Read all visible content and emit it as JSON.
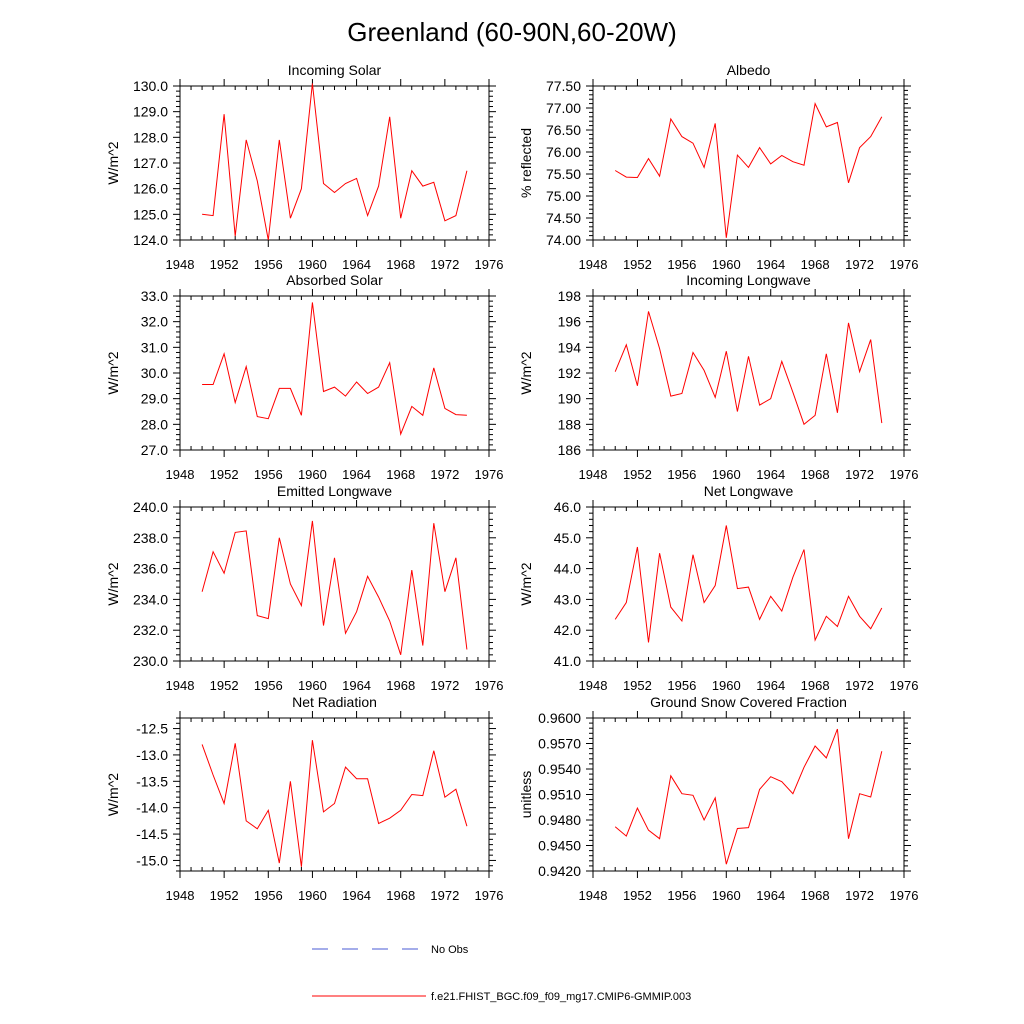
{
  "figure": {
    "title": "Greenland (60-90N,60-20W)",
    "legend": [
      {
        "label": "No Obs",
        "color": "#4a5bd6",
        "dash": true
      },
      {
        "label": "f.e21.FHIST_BGC.f09_f09_mg17.CMIP6-GMMIP.003",
        "color": "#ff0000",
        "dash": false
      }
    ]
  },
  "series_color": "#ff0000",
  "chart_data": [
    {
      "type": "line",
      "title": "Incoming Solar",
      "ylabel": "W/m^2",
      "xlim": [
        1948,
        1976
      ],
      "ylim": [
        124.0,
        130.0
      ],
      "xticks": [
        1948,
        1952,
        1956,
        1960,
        1964,
        1968,
        1972,
        1976
      ],
      "yticks": [
        "124.0",
        "125.0",
        "126.0",
        "127.0",
        "128.0",
        "129.0",
        "130.0"
      ],
      "x": [
        1950,
        1951,
        1952,
        1953,
        1954,
        1955,
        1956,
        1957,
        1958,
        1959,
        1960,
        1961,
        1962,
        1963,
        1964,
        1965,
        1966,
        1967,
        1968,
        1969,
        1970,
        1971,
        1972,
        1973,
        1974
      ],
      "y": [
        125.0,
        124.95,
        128.9,
        124.15,
        127.9,
        126.3,
        124.0,
        127.9,
        124.85,
        126.0,
        130.1,
        126.2,
        125.85,
        126.2,
        126.4,
        124.95,
        126.1,
        128.8,
        124.85,
        126.7,
        126.1,
        126.25,
        124.75,
        124.95,
        126.7
      ]
    },
    {
      "type": "line",
      "title": "Albedo",
      "ylabel": "% reflected",
      "xlim": [
        1948,
        1976
      ],
      "ylim": [
        74.0,
        77.5
      ],
      "xticks": [
        1948,
        1952,
        1956,
        1960,
        1964,
        1968,
        1972,
        1976
      ],
      "yticks": [
        "74.00",
        "74.50",
        "75.00",
        "75.50",
        "76.00",
        "76.50",
        "77.00",
        "77.50"
      ],
      "x": [
        1950,
        1951,
        1952,
        1953,
        1954,
        1955,
        1956,
        1957,
        1958,
        1959,
        1960,
        1961,
        1962,
        1963,
        1964,
        1965,
        1966,
        1967,
        1968,
        1969,
        1970,
        1971,
        1972,
        1973,
        1974
      ],
      "y": [
        75.58,
        75.43,
        75.42,
        75.85,
        75.45,
        76.75,
        76.35,
        76.2,
        75.65,
        76.65,
        74.05,
        75.93,
        75.65,
        76.1,
        75.73,
        75.92,
        75.78,
        75.7,
        77.1,
        76.57,
        76.67,
        75.3,
        76.1,
        76.35,
        76.8
      ]
    },
    {
      "type": "line",
      "title": "Absorbed Solar",
      "ylabel": "W/m^2",
      "xlim": [
        1948,
        1976
      ],
      "ylim": [
        27.0,
        33.0
      ],
      "xticks": [
        1948,
        1952,
        1956,
        1960,
        1964,
        1968,
        1972,
        1976
      ],
      "yticks": [
        "27.0",
        "28.0",
        "29.0",
        "30.0",
        "31.0",
        "32.0",
        "33.0"
      ],
      "x": [
        1950,
        1951,
        1952,
        1953,
        1954,
        1955,
        1956,
        1957,
        1958,
        1959,
        1960,
        1961,
        1962,
        1963,
        1964,
        1965,
        1966,
        1967,
        1968,
        1969,
        1970,
        1971,
        1972,
        1973,
        1974
      ],
      "y": [
        29.55,
        29.55,
        30.75,
        28.85,
        30.25,
        28.3,
        28.22,
        29.4,
        29.4,
        28.35,
        32.75,
        29.28,
        29.45,
        29.1,
        29.65,
        29.2,
        29.45,
        30.4,
        27.62,
        28.7,
        28.35,
        30.2,
        28.62,
        28.38,
        28.35
      ]
    },
    {
      "type": "line",
      "title": "Incoming Longwave",
      "ylabel": "W/m^2",
      "xlim": [
        1948,
        1976
      ],
      "ylim": [
        186,
        198
      ],
      "xticks": [
        1948,
        1952,
        1956,
        1960,
        1964,
        1968,
        1972,
        1976
      ],
      "yticks": [
        "186",
        "188",
        "190",
        "192",
        "194",
        "196",
        "198"
      ],
      "x": [
        1950,
        1951,
        1952,
        1953,
        1954,
        1955,
        1956,
        1957,
        1958,
        1959,
        1960,
        1961,
        1962,
        1963,
        1964,
        1965,
        1966,
        1967,
        1968,
        1969,
        1970,
        1971,
        1972,
        1973,
        1974
      ],
      "y": [
        192.1,
        194.2,
        191.0,
        196.8,
        193.9,
        190.2,
        190.4,
        193.6,
        192.2,
        190.1,
        193.7,
        189.0,
        193.3,
        189.5,
        190.0,
        192.9,
        190.5,
        188.0,
        188.7,
        193.5,
        188.9,
        195.9,
        192.1,
        194.6,
        188.1
      ]
    },
    {
      "type": "line",
      "title": "Emitted Longwave",
      "ylabel": "W/m^2",
      "xlim": [
        1948,
        1976
      ],
      "ylim": [
        230.0,
        240.0
      ],
      "xticks": [
        1948,
        1952,
        1956,
        1960,
        1964,
        1968,
        1972,
        1976
      ],
      "yticks": [
        "230.0",
        "232.0",
        "234.0",
        "236.0",
        "238.0",
        "240.0"
      ],
      "x": [
        1950,
        1951,
        1952,
        1953,
        1954,
        1955,
        1956,
        1957,
        1958,
        1959,
        1960,
        1961,
        1962,
        1963,
        1964,
        1965,
        1966,
        1967,
        1968,
        1969,
        1970,
        1971,
        1972,
        1973,
        1974
      ],
      "y": [
        234.5,
        237.1,
        235.7,
        238.35,
        238.45,
        232.95,
        232.75,
        238.0,
        235.0,
        233.6,
        239.1,
        232.3,
        236.7,
        231.8,
        233.2,
        235.5,
        234.15,
        232.6,
        230.4,
        235.9,
        231.0,
        238.95,
        234.5,
        236.7,
        230.75
      ]
    },
    {
      "type": "line",
      "title": "Net Longwave",
      "ylabel": "W/m^2",
      "xlim": [
        1948,
        1976
      ],
      "ylim": [
        41.0,
        46.0
      ],
      "xticks": [
        1948,
        1952,
        1956,
        1960,
        1964,
        1968,
        1972,
        1976
      ],
      "yticks": [
        "41.0",
        "42.0",
        "43.0",
        "44.0",
        "45.0",
        "46.0"
      ],
      "x": [
        1950,
        1951,
        1952,
        1953,
        1954,
        1955,
        1956,
        1957,
        1958,
        1959,
        1960,
        1961,
        1962,
        1963,
        1964,
        1965,
        1966,
        1967,
        1968,
        1969,
        1970,
        1971,
        1972,
        1973,
        1974
      ],
      "y": [
        42.35,
        42.9,
        44.7,
        41.6,
        44.5,
        42.75,
        42.3,
        44.45,
        42.9,
        43.45,
        45.4,
        43.35,
        43.4,
        42.35,
        43.1,
        42.62,
        43.72,
        44.62,
        41.68,
        42.45,
        42.12,
        43.1,
        42.45,
        42.05,
        42.72
      ]
    },
    {
      "type": "line",
      "title": "Net Radiation",
      "ylabel": "W/m^2",
      "xlim": [
        1948,
        1976
      ],
      "ylim": [
        -15.2,
        -12.3
      ],
      "xticks": [
        1948,
        1952,
        1956,
        1960,
        1964,
        1968,
        1972,
        1976
      ],
      "yticks": [
        "-15.0",
        "-14.5",
        "-14.0",
        "-13.5",
        "-13.0",
        "-12.5"
      ],
      "x": [
        1950,
        1951,
        1952,
        1953,
        1954,
        1955,
        1956,
        1957,
        1958,
        1959,
        1960,
        1961,
        1962,
        1963,
        1964,
        1965,
        1966,
        1967,
        1968,
        1969,
        1970,
        1971,
        1972,
        1973,
        1974
      ],
      "y": [
        -12.8,
        -13.38,
        -13.92,
        -12.78,
        -14.25,
        -14.4,
        -14.05,
        -15.05,
        -13.5,
        -15.12,
        -12.72,
        -14.08,
        -13.92,
        -13.23,
        -13.45,
        -13.45,
        -14.3,
        -14.2,
        -14.05,
        -13.75,
        -13.77,
        -12.92,
        -13.8,
        -13.65,
        -14.35
      ]
    },
    {
      "type": "line",
      "title": "Ground Snow Covered Fraction",
      "ylabel": "unitless",
      "xlim": [
        1948,
        1976
      ],
      "ylim": [
        0.942,
        0.96
      ],
      "xticks": [
        1948,
        1952,
        1956,
        1960,
        1964,
        1968,
        1972,
        1976
      ],
      "yticks": [
        "0.9420",
        "0.9450",
        "0.9480",
        "0.9510",
        "0.9540",
        "0.9570",
        "0.9600"
      ],
      "x": [
        1950,
        1951,
        1952,
        1953,
        1954,
        1955,
        1956,
        1957,
        1958,
        1959,
        1960,
        1961,
        1962,
        1963,
        1964,
        1965,
        1966,
        1967,
        1968,
        1969,
        1970,
        1971,
        1972,
        1973,
        1974
      ],
      "y": [
        0.9472,
        0.9461,
        0.9494,
        0.9468,
        0.9458,
        0.9532,
        0.9511,
        0.9509,
        0.948,
        0.9506,
        0.9428,
        0.947,
        0.9471,
        0.9516,
        0.9531,
        0.9525,
        0.9511,
        0.9542,
        0.9567,
        0.9553,
        0.9587,
        0.9458,
        0.9511,
        0.9507,
        0.9561
      ]
    }
  ]
}
